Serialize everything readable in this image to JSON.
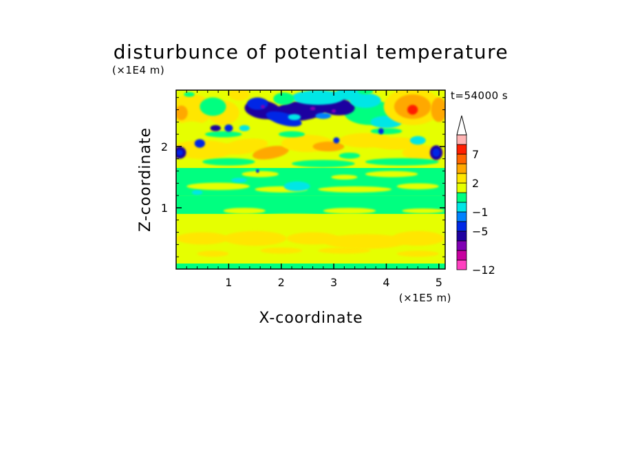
{
  "chart_data": {
    "type": "heatmap",
    "title": "disturbunce of potential temperature",
    "xlabel": "X-coordinate",
    "ylabel": "Z-coordinate",
    "x_unit": "(×1E5 m)",
    "y_unit": "(×1E4 m)",
    "time_label": "t=54000 s",
    "xlim": [
      0,
      5.12
    ],
    "ylim": [
      0,
      2.92
    ],
    "x_ticks": [
      1,
      2,
      3,
      4,
      5
    ],
    "y_ticks": [
      1,
      2
    ],
    "colorbar": {
      "levels": [
        -12,
        -10,
        -8,
        -6,
        -5,
        -3,
        -1,
        0,
        1,
        2,
        3,
        5,
        7,
        9
      ],
      "labeled": [
        "-12",
        "-5",
        "-1",
        "2",
        "7"
      ],
      "colors": [
        "#ff40c0",
        "#c800a0",
        "#8000b4",
        "#1e00a0",
        "#0028e6",
        "#0082ff",
        "#00e6e6",
        "#00ff80",
        "#e6ff00",
        "#ffe600",
        "#ffa800",
        "#ff6400",
        "#ff1e00",
        "#ffb4b4"
      ],
      "extend": "max"
    },
    "field_description_rows": [
      {
        "z_range": [
          0.0,
          0.1
        ],
        "dominant_level": "0 to 1"
      },
      {
        "z_range": [
          0.1,
          0.9
        ],
        "dominant_level": "1 to 3"
      },
      {
        "z_range": [
          0.9,
          1.6
        ],
        "dominant_level": "-1 to 1"
      },
      {
        "z_range": [
          1.6,
          2.4
        ],
        "dominant_level": "1 to 5"
      },
      {
        "z_range": [
          2.4,
          2.92
        ],
        "dominant_level": "-5 to 7"
      }
    ]
  }
}
